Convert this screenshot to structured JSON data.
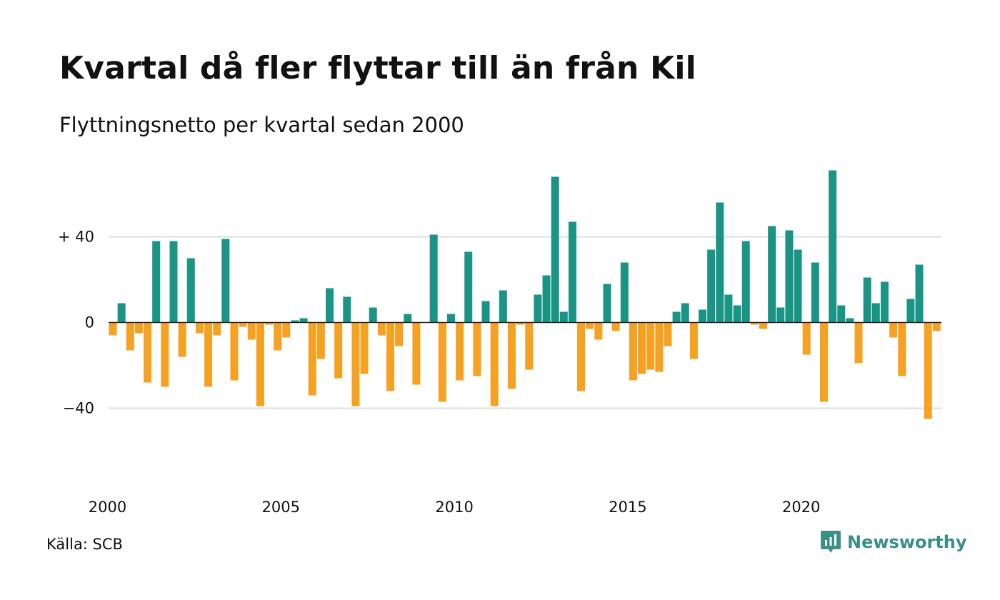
{
  "title": "Kvartal då fler flyttar till än från Kil",
  "subtitle": "Flyttningsnetto per kvartal sedan 2000",
  "source": "Källa: SCB",
  "brand": {
    "name": "Newsworthy",
    "icon": "newsworthy-logo-icon",
    "color": "#3a8f86"
  },
  "chart_data": {
    "type": "bar",
    "title": "Kvartal då fler flyttar till än från Kil",
    "subtitle": "Flyttningsnetto per kvartal sedan 2000",
    "xlabel": "",
    "ylabel": "",
    "x_start": 2000,
    "quarters_per_year": 4,
    "x_ticks": [
      "2000",
      "2005",
      "2010",
      "2015",
      "2020"
    ],
    "y_ticks": [
      {
        "value": 40,
        "label": "+ 40"
      },
      {
        "value": 0,
        "label": "0"
      },
      {
        "value": -40,
        "label": "−40"
      }
    ],
    "ylim": [
      -75,
      75
    ],
    "grid": true,
    "colors": {
      "positive": "#1a9485",
      "negative": "#f5a122",
      "grid": "#dddddd",
      "zero_line": "#222222"
    },
    "values": [
      -6,
      9,
      -13,
      -5,
      -28,
      38,
      -30,
      38,
      -16,
      30,
      -5,
      -30,
      -6,
      39,
      -27,
      -2,
      -8,
      -39,
      -1,
      -13,
      -7,
      1,
      2,
      -34,
      -17,
      16,
      -26,
      12,
      -39,
      -24,
      7,
      -6,
      -32,
      -11,
      4,
      -29,
      0,
      41,
      -37,
      4,
      -27,
      33,
      -25,
      10,
      -39,
      15,
      -31,
      -1,
      -22,
      13,
      22,
      68,
      5,
      47,
      -32,
      -3,
      -8,
      18,
      -4,
      28,
      -27,
      -24,
      -22,
      -23,
      -11,
      5,
      9,
      -17,
      6,
      34,
      56,
      13,
      8,
      38,
      -1,
      -3,
      45,
      7,
      43,
      34,
      -15,
      28,
      -37,
      71,
      8,
      2,
      -19,
      21,
      9,
      19,
      -7,
      -25,
      11,
      27,
      -45,
      -4
    ]
  }
}
